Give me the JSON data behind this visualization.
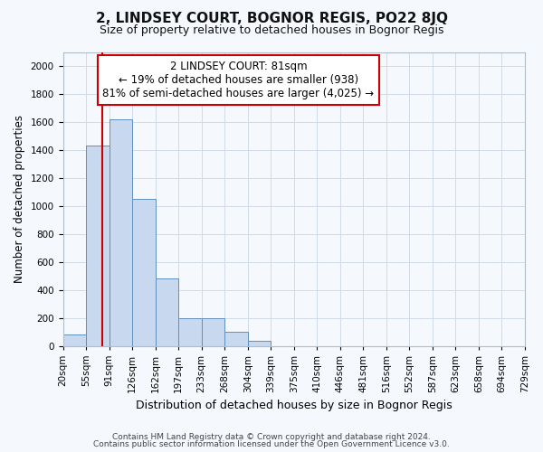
{
  "title": "2, LINDSEY COURT, BOGNOR REGIS, PO22 8JQ",
  "subtitle": "Size of property relative to detached houses in Bognor Regis",
  "xlabel": "Distribution of detached houses by size in Bognor Regis",
  "ylabel": "Number of detached properties",
  "footnote1": "Contains HM Land Registry data © Crown copyright and database right 2024.",
  "footnote2": "Contains public sector information licensed under the Open Government Licence v3.0.",
  "bin_labels": [
    "20sqm",
    "55sqm",
    "91sqm",
    "126sqm",
    "162sqm",
    "197sqm",
    "233sqm",
    "268sqm",
    "304sqm",
    "339sqm",
    "375sqm",
    "410sqm",
    "446sqm",
    "481sqm",
    "516sqm",
    "552sqm",
    "587sqm",
    "623sqm",
    "658sqm",
    "694sqm",
    "729sqm"
  ],
  "bar_values": [
    80,
    1430,
    1620,
    1050,
    480,
    200,
    200,
    100,
    35,
    0,
    0,
    0,
    0,
    0,
    0,
    0,
    0,
    0,
    0,
    0
  ],
  "bar_color": "#c8d8ee",
  "bar_edgecolor": "#6090c0",
  "grid_color": "#d0dce8",
  "annotation_box_text": "2 LINDSEY COURT: 81sqm\n← 19% of detached houses are smaller (938)\n81% of semi-detached houses are larger (4,025) →",
  "annotation_box_color": "#ffffff",
  "annotation_box_edgecolor": "#cc0000",
  "vline_color": "#cc0000",
  "ylim": [
    0,
    2100
  ],
  "yticks": [
    0,
    200,
    400,
    600,
    800,
    1000,
    1200,
    1400,
    1600,
    1800,
    2000
  ],
  "background_color": "#f5f8fc",
  "title_fontsize": 11,
  "subtitle_fontsize": 9,
  "xlabel_fontsize": 9,
  "ylabel_fontsize": 8.5,
  "tick_fontsize": 7.5,
  "annotation_fontsize": 8.5
}
